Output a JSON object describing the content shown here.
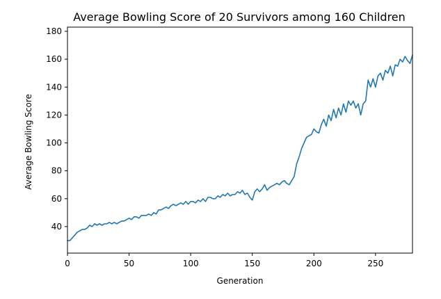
{
  "chart_data": {
    "type": "line",
    "title": "Average Bowling Score of 20 Survivors among 160 Children",
    "xlabel": "Generation",
    "ylabel": "Average Bowling Score",
    "xlim": [
      0,
      280
    ],
    "ylim": [
      21,
      183
    ],
    "x_ticks": [
      0,
      50,
      100,
      150,
      200,
      250
    ],
    "y_ticks": [
      40,
      60,
      80,
      100,
      120,
      140,
      160,
      180
    ],
    "grid": false,
    "legend": "none",
    "series": [
      {
        "color": "#1f77b4",
        "x": [
          0,
          2,
          4,
          6,
          8,
          10,
          12,
          14,
          16,
          18,
          20,
          22,
          24,
          26,
          28,
          30,
          32,
          34,
          36,
          38,
          40,
          42,
          44,
          46,
          48,
          50,
          52,
          54,
          56,
          58,
          60,
          62,
          64,
          66,
          68,
          70,
          72,
          74,
          76,
          78,
          80,
          82,
          84,
          86,
          88,
          90,
          92,
          94,
          96,
          98,
          100,
          102,
          104,
          106,
          108,
          110,
          112,
          114,
          116,
          118,
          120,
          122,
          124,
          126,
          128,
          130,
          132,
          134,
          136,
          138,
          140,
          142,
          144,
          146,
          148,
          150,
          152,
          154,
          156,
          158,
          160,
          162,
          164,
          166,
          168,
          170,
          172,
          174,
          176,
          178,
          180,
          182,
          184,
          186,
          188,
          190,
          192,
          194,
          196,
          198,
          200,
          202,
          204,
          206,
          208,
          210,
          212,
          214,
          216,
          218,
          220,
          222,
          224,
          226,
          228,
          230,
          232,
          234,
          236,
          238,
          240,
          242,
          244,
          246,
          248,
          250,
          252,
          254,
          256,
          258,
          260,
          262,
          264,
          266,
          268,
          270,
          272,
          274,
          276,
          278,
          280
        ],
        "y": [
          30,
          30,
          32,
          34,
          36,
          37,
          38,
          38,
          39,
          41,
          40,
          42,
          41,
          42,
          41,
          42,
          42,
          43,
          42,
          43,
          42,
          43,
          44,
          44,
          45,
          46,
          45,
          47,
          47,
          46,
          48,
          48,
          48,
          49,
          48,
          50,
          49,
          52,
          52,
          53,
          54,
          53,
          55,
          56,
          55,
          56,
          57,
          56,
          58,
          56,
          58,
          58,
          57,
          59,
          58,
          60,
          58,
          61,
          61,
          60,
          60,
          62,
          61,
          63,
          62,
          64,
          62,
          63,
          63,
          65,
          64,
          66,
          63,
          64,
          61,
          59,
          65,
          67,
          65,
          67,
          70,
          66,
          68,
          69,
          70,
          71,
          70,
          72,
          73,
          71,
          70,
          73,
          76,
          85,
          90,
          96,
          100,
          104,
          105,
          106,
          110,
          108,
          107,
          113,
          117,
          112,
          120,
          116,
          124,
          118,
          125,
          120,
          128,
          122,
          130,
          127,
          130,
          125,
          128,
          120,
          128,
          130,
          145,
          140,
          146,
          140,
          148,
          150,
          145,
          152,
          150,
          155,
          148,
          156,
          155,
          160,
          158,
          162,
          159,
          157,
          163
        ]
      }
    ]
  }
}
